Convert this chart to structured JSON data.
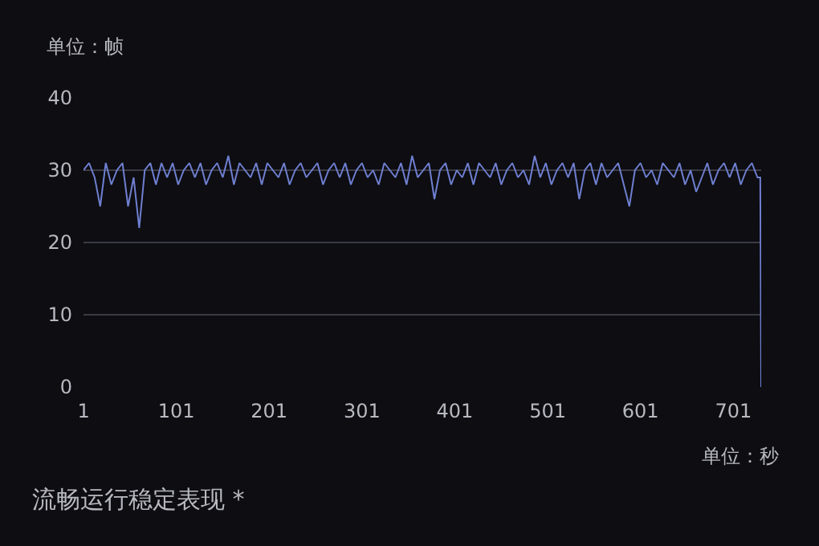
{
  "chart_data": {
    "type": "line",
    "ylabel": "单位：帧",
    "xlabel": "单位：秒",
    "annotations": [
      "流畅运行稳定表现 *"
    ],
    "x": [
      1,
      7,
      13,
      19,
      25,
      31,
      37,
      43,
      49,
      55,
      61,
      67,
      73,
      79,
      85,
      91,
      97,
      103,
      109,
      115,
      121,
      127,
      133,
      139,
      145,
      151,
      157,
      163,
      169,
      175,
      181,
      187,
      193,
      199,
      205,
      211,
      217,
      223,
      229,
      235,
      241,
      247,
      253,
      259,
      265,
      271,
      277,
      283,
      289,
      295,
      301,
      307,
      313,
      319,
      325,
      331,
      337,
      343,
      349,
      355,
      361,
      367,
      373,
      379,
      385,
      391,
      397,
      403,
      409,
      415,
      421,
      427,
      433,
      439,
      445,
      451,
      457,
      463,
      469,
      475,
      481,
      487,
      493,
      499,
      505,
      511,
      517,
      523,
      529,
      535,
      541,
      547,
      553,
      559,
      565,
      571,
      577,
      583,
      589,
      595,
      601,
      607,
      613,
      619,
      625,
      631,
      637,
      643,
      649,
      655,
      661,
      667,
      673,
      679,
      685,
      691,
      697,
      703,
      709,
      715,
      721,
      727,
      730,
      731
    ],
    "series": [
      {
        "color": "#6f7fd0",
        "values": [
          30,
          31,
          29,
          25,
          31,
          28,
          30,
          31,
          25,
          29,
          22,
          30,
          31,
          28,
          31,
          29,
          31,
          28,
          30,
          31,
          29,
          31,
          28,
          30,
          31,
          29,
          32,
          28,
          31,
          30,
          29,
          31,
          28,
          31,
          30,
          29,
          31,
          28,
          30,
          31,
          29,
          30,
          31,
          28,
          30,
          31,
          29,
          31,
          28,
          30,
          31,
          29,
          30,
          28,
          31,
          30,
          29,
          31,
          28,
          32,
          29,
          30,
          31,
          26,
          30,
          31,
          28,
          30,
          29,
          31,
          28,
          31,
          30,
          29,
          31,
          28,
          30,
          31,
          29,
          30,
          28,
          32,
          29,
          31,
          28,
          30,
          31,
          29,
          31,
          26,
          30,
          31,
          28,
          31,
          29,
          30,
          31,
          28,
          25,
          30,
          31,
          29,
          30,
          28,
          31,
          30,
          29,
          31,
          28,
          30,
          27,
          29,
          31,
          28,
          30,
          31,
          29,
          31,
          28,
          30,
          31,
          29,
          29,
          0
        ]
      }
    ],
    "xlim": [
      1,
      731
    ],
    "xticks": [
      1,
      101,
      201,
      301,
      401,
      501,
      601,
      701
    ],
    "ylim": [
      0,
      40
    ],
    "yticks": [
      0,
      10,
      20,
      30,
      40
    ],
    "grid": "y",
    "marker": "none",
    "line_style": "solid"
  }
}
